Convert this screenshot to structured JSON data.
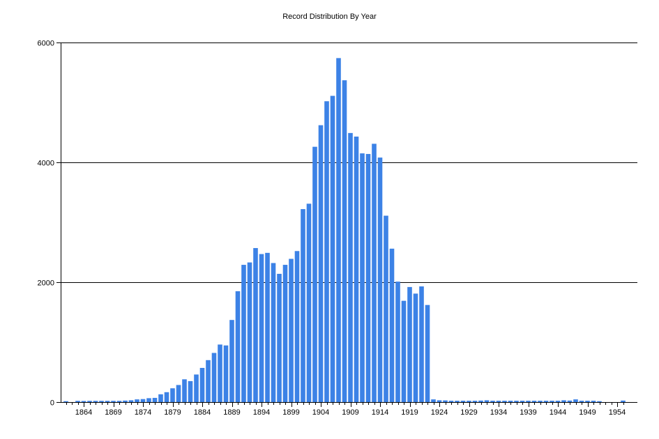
{
  "chart_data": {
    "type": "bar",
    "title": "Record Distribution By Year",
    "xlabel": "",
    "ylabel": "",
    "x_start": 1861,
    "x_end": 1955,
    "ylim": [
      0,
      6000
    ],
    "yticks": [
      0,
      2000,
      4000,
      6000
    ],
    "xticks": [
      1864,
      1869,
      1874,
      1879,
      1884,
      1889,
      1894,
      1899,
      1904,
      1909,
      1914,
      1919,
      1924,
      1929,
      1934,
      1939,
      1944,
      1949,
      1954
    ],
    "grid": "horizontal",
    "bar_color": "#3C82E6",
    "years": [
      1861,
      1862,
      1863,
      1864,
      1865,
      1866,
      1867,
      1868,
      1869,
      1870,
      1871,
      1872,
      1873,
      1874,
      1875,
      1876,
      1877,
      1878,
      1879,
      1880,
      1881,
      1882,
      1883,
      1884,
      1885,
      1886,
      1887,
      1888,
      1889,
      1890,
      1891,
      1892,
      1893,
      1894,
      1895,
      1896,
      1897,
      1898,
      1899,
      1900,
      1901,
      1902,
      1903,
      1904,
      1905,
      1906,
      1907,
      1908,
      1909,
      1910,
      1911,
      1912,
      1913,
      1914,
      1915,
      1916,
      1917,
      1918,
      1919,
      1920,
      1921,
      1922,
      1923,
      1924,
      1925,
      1926,
      1927,
      1928,
      1929,
      1930,
      1931,
      1932,
      1933,
      1934,
      1935,
      1936,
      1937,
      1938,
      1939,
      1940,
      1941,
      1942,
      1943,
      1944,
      1945,
      1946,
      1947,
      1948,
      1949,
      1950,
      1951,
      1952,
      1953,
      1954,
      1955
    ],
    "values": [
      15,
      0,
      20,
      18,
      20,
      20,
      20,
      20,
      20,
      20,
      25,
      30,
      45,
      50,
      65,
      70,
      130,
      165,
      230,
      285,
      380,
      350,
      460,
      570,
      700,
      820,
      960,
      945,
      1370,
      1850,
      2290,
      2330,
      2570,
      2470,
      2490,
      2320,
      2140,
      2290,
      2390,
      2520,
      3220,
      3310,
      4260,
      4620,
      5020,
      5110,
      5740,
      5370,
      4490,
      4430,
      4150,
      4140,
      4310,
      4080,
      3110,
      2560,
      2010,
      1690,
      1920,
      1810,
      1930,
      1620,
      45,
      30,
      28,
      22,
      22,
      22,
      22,
      22,
      25,
      30,
      22,
      22,
      22,
      22,
      22,
      22,
      22,
      22,
      22,
      22,
      22,
      22,
      30,
      25,
      45,
      22,
      22,
      22,
      15,
      0,
      0,
      0,
      25
    ]
  }
}
